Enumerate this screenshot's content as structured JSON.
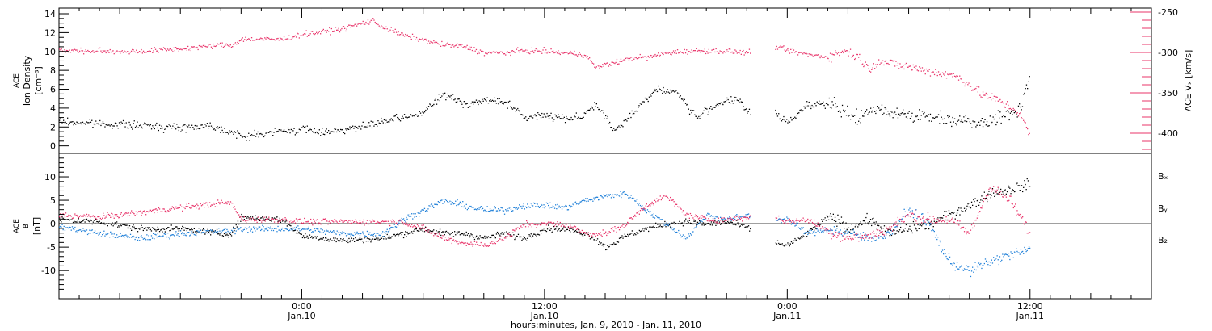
{
  "colors": {
    "black": "#000000",
    "pink": "#e8346a",
    "blue": "#1e7fd8"
  },
  "x_axis": {
    "title": "hours:minutes, Jan.  9, 2010 - Jan. 11, 2010",
    "ticks": [
      {
        "x": 0,
        "hhmm": "0:00",
        "date": "Jan.10"
      },
      {
        "x": 12,
        "hhmm": "12:00",
        "date": "Jan.10"
      },
      {
        "x": 24,
        "hhmm": "0:00",
        "date": "Jan.11"
      },
      {
        "x": 36,
        "hhmm": "12:00",
        "date": "Jan.11"
      }
    ]
  },
  "top_panel": {
    "left_label": [
      "ACE",
      "Ion Density",
      "[cm⁻³]"
    ],
    "right_label": "ACE Vₓ [km/s]"
  },
  "bottom_panel": {
    "left_label": [
      "ACE",
      "B",
      "[nT]"
    ],
    "legend": [
      "Bₓ",
      "Bᵧ",
      "B₂"
    ]
  },
  "chart_data": [
    {
      "type": "scatter",
      "title": "",
      "xlabel": "hours:minutes, Jan.  9, 2010 - Jan. 11, 2010",
      "xlim": [
        -12,
        42
      ],
      "y_left": {
        "label": "ACE Ion Density [cm⁻³]",
        "lim": [
          -0.8,
          14.6
        ],
        "ticks": [
          0,
          2,
          4,
          6,
          8,
          10,
          12,
          14
        ]
      },
      "y_right": {
        "label": "ACE Vx [km/s]",
        "lim": [
          -425,
          -245
        ],
        "ticks": [
          -250,
          -300,
          -350,
          -400
        ]
      },
      "gaps": [
        [
          22.2,
          23.4
        ]
      ],
      "series": [
        {
          "name": "",
          "axis": "left",
          "color": "black",
          "x": [
            -12,
            -10,
            -8,
            -6,
            -4.5,
            -3.5,
            -3,
            -1,
            0,
            1,
            2,
            3,
            4,
            5,
            6,
            7,
            8,
            9,
            10,
            11,
            12,
            13,
            13.8,
            14.5,
            15.5,
            16.5,
            17.5,
            18.5,
            19.5,
            20.5,
            21.5,
            22.2,
            23.4,
            24,
            25,
            26,
            26.8,
            27.5,
            28.5,
            29.5,
            30.5,
            31.5,
            32.5,
            33.5,
            34.5,
            35.5,
            36
          ],
          "y": [
            2.6,
            2.4,
            2.2,
            2.0,
            2.2,
            1.5,
            1.0,
            1.6,
            1.8,
            1.5,
            1.8,
            2.0,
            2.6,
            3.0,
            3.6,
            5.5,
            4.5,
            4.8,
            4.8,
            3.0,
            3.3,
            3.0,
            3.1,
            4.5,
            1.5,
            4.0,
            6.0,
            5.8,
            3.0,
            4.5,
            5.0,
            3.2,
            3.5,
            2.5,
            4.5,
            4.5,
            3.6,
            3.0,
            4.0,
            3.5,
            3.2,
            3.0,
            2.8,
            2.6,
            3.0,
            4.0,
            8.0
          ]
        },
        {
          "name": "",
          "axis": "right",
          "color": "pink",
          "x": [
            -12,
            -10,
            -8,
            -6,
            -4,
            -3.5,
            -3,
            -1,
            0,
            1,
            2,
            3,
            3.5,
            4,
            5,
            6,
            7,
            8,
            9,
            10,
            11,
            12,
            13,
            14,
            14.5,
            16.5,
            17,
            18,
            19,
            20,
            21,
            22.2,
            23.4,
            24,
            25,
            26,
            26.8,
            27.5,
            28,
            28.5,
            29.5,
            30.5,
            31.5,
            32.5,
            33.5,
            34.5,
            35.5,
            36
          ],
          "y": [
            -297,
            -298,
            -298,
            -295,
            -290,
            -291,
            -283,
            -283,
            -277,
            -274,
            -270,
            -263,
            -260,
            -268,
            -278,
            -284,
            -290,
            -292,
            -300,
            -300,
            -297,
            -298,
            -300,
            -302,
            -318,
            -305,
            -306,
            -300,
            -298,
            -297,
            -298,
            -300,
            -292,
            -297,
            -302,
            -305,
            -297,
            -305,
            -320,
            -310,
            -315,
            -320,
            -325,
            -330,
            -350,
            -360,
            -375,
            -405
          ]
        }
      ]
    },
    {
      "type": "scatter",
      "title": "",
      "xlabel": "hours:minutes, Jan.  9, 2010 - Jan. 11, 2010",
      "xlim": [
        -12,
        42
      ],
      "ylabel": "ACE B [nT]",
      "ylim": [
        -16,
        15
      ],
      "ticks": [
        -10,
        -5,
        0,
        5,
        10
      ],
      "zero_line": true,
      "gaps": [
        [
          22.2,
          23.4
        ]
      ],
      "series": [
        {
          "name": "Bₓ",
          "color": "black",
          "x": [
            -12,
            -10,
            -8,
            -6,
            -4,
            -3.5,
            -3,
            -1,
            0,
            2,
            4,
            5,
            6,
            7,
            8,
            9,
            10,
            11,
            12,
            13,
            14,
            14.5,
            15,
            16,
            17,
            18,
            19,
            20,
            21,
            22.2,
            23.4,
            24,
            25,
            26,
            26.5,
            27,
            28,
            29,
            30,
            31,
            32,
            33,
            34,
            35,
            36
          ],
          "y": [
            1.0,
            0.5,
            -1.0,
            -1.0,
            -2.0,
            -2.0,
            1.5,
            1.0,
            -2.5,
            -3.5,
            -3.0,
            -2.0,
            -1.0,
            -2.0,
            -2.0,
            -3.0,
            -2.0,
            -3.0,
            -1.0,
            -1.0,
            -2.0,
            -3.0,
            -5.0,
            -2.5,
            -1.0,
            0.0,
            0.5,
            0.0,
            0.5,
            -1.0,
            -4.0,
            -4.5,
            -2.0,
            1.5,
            1.0,
            -1.0,
            1.0,
            -2.0,
            -1.0,
            0.0,
            2.0,
            4.0,
            6.5,
            7.5,
            8.5
          ]
        },
        {
          "name": "Bᵧ",
          "color": "blue",
          "x": [
            -12,
            -10,
            -8,
            -6,
            -4,
            -3.5,
            -3,
            -1,
            0,
            2,
            4,
            5,
            6,
            7,
            8,
            9,
            10,
            11,
            12,
            13,
            14,
            15,
            16,
            16.5,
            17,
            18,
            19,
            20,
            21,
            22.2,
            23.4,
            24,
            25,
            26,
            27,
            28,
            29,
            30,
            31,
            32,
            33,
            34,
            35,
            36
          ],
          "y": [
            -0.5,
            -2.0,
            -3.0,
            -2.0,
            -1.5,
            -1.5,
            -1.0,
            -1.0,
            -1.0,
            -2.0,
            -2.0,
            1.0,
            3.0,
            5.0,
            4.0,
            3.0,
            3.0,
            4.0,
            4.0,
            3.5,
            5.0,
            6.0,
            6.5,
            5.0,
            3.0,
            0.0,
            -3.0,
            2.0,
            1.0,
            2.0,
            1.0,
            1.0,
            -2.0,
            -1.0,
            -2.0,
            -3.0,
            -2.0,
            3.0,
            0.0,
            -8.0,
            -10.0,
            -8.0,
            -6.5,
            -5.5
          ]
        },
        {
          "name": "B₂",
          "color": "pink",
          "x": [
            -12,
            -10,
            -8,
            -6,
            -4,
            -3.5,
            -3,
            -1,
            0,
            2,
            4,
            5,
            6,
            7,
            8,
            9,
            10,
            11,
            12,
            13,
            14,
            15,
            16,
            17,
            18,
            19,
            20,
            21,
            22.2,
            23.4,
            24,
            25,
            26,
            27,
            28,
            29,
            30,
            31,
            32,
            33,
            34,
            35,
            36
          ],
          "y": [
            2.0,
            1.5,
            2.5,
            3.5,
            4.5,
            4.5,
            1.0,
            1.0,
            0.5,
            0.5,
            0.5,
            0.5,
            -1.0,
            -3.0,
            -4.0,
            -4.5,
            -3.0,
            0.0,
            0.0,
            0.0,
            -2.0,
            -2.0,
            0.0,
            4.0,
            6.0,
            2.0,
            1.0,
            1.0,
            1.5,
            1.5,
            0.5,
            1.0,
            -1.5,
            -3.0,
            -2.5,
            -1.0,
            2.0,
            1.0,
            1.0,
            -2.0,
            8.0,
            5.0,
            -2.0
          ]
        }
      ]
    }
  ]
}
